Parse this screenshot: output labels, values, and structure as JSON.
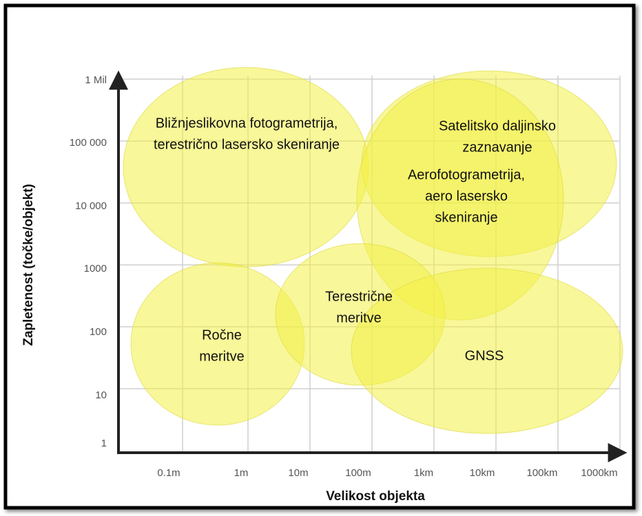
{
  "axes": {
    "x_title": "Velikost objekta",
    "y_title": "Zapletenost (točke/objekt)",
    "x_ticks": [
      "0.1m",
      "1m",
      "10m",
      "100m",
      "1km",
      "10km",
      "100km",
      "1000km"
    ],
    "y_ticks": [
      "1 Mil",
      "100 000",
      "10 000",
      "1000",
      "100",
      "10",
      "1"
    ]
  },
  "nodes": [
    {
      "lines": [
        "Bližnjeslikovna fotogrametrija,",
        "terestrično lasersko skeniranje"
      ]
    },
    {
      "lines": [
        "Satelitsko daljinsko",
        "zaznavanje"
      ]
    },
    {
      "lines": [
        "Aerofotogrametrija,",
        "aero lasersko",
        "skeniranje"
      ]
    },
    {
      "lines": [
        "Ročne",
        "meritve"
      ]
    },
    {
      "lines": [
        "Terestrične",
        "meritve"
      ]
    },
    {
      "lines": [
        "GNSS"
      ]
    }
  ]
}
